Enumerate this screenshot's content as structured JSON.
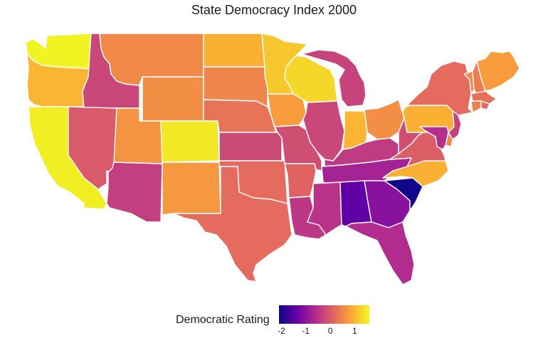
{
  "title": "State Democracy Index 2000",
  "legend": {
    "title": "Democratic Rating",
    "ticks": [
      {
        "value": -2,
        "label": "-2"
      },
      {
        "value": -1,
        "label": "-1"
      },
      {
        "value": 0,
        "label": "0"
      },
      {
        "value": 1,
        "label": "1"
      }
    ],
    "range": [
      -2.1,
      1.6
    ],
    "colors": [
      "#0d0887",
      "#6a00a8",
      "#b12a90",
      "#e16462",
      "#fca636",
      "#f0f921"
    ]
  },
  "chart_data": {
    "type": "choropleth",
    "title": "State Democracy Index 2000",
    "legend_title": "Democratic Rating",
    "values": {
      "WA": 1.55,
      "OR": 1.0,
      "CA": 1.5,
      "ID": -0.25,
      "NV": 0.0,
      "AZ": -0.35,
      "MT": 0.55,
      "WY": 0.6,
      "UT": 0.65,
      "CO": 1.45,
      "NM": 0.7,
      "ND": 0.95,
      "SD": 0.5,
      "NE": 0.3,
      "KS": -0.2,
      "OK": 0.2,
      "TX": 0.2,
      "MN": 1.15,
      "IA": 0.75,
      "MO": -0.15,
      "AR": 0.1,
      "LA": -0.45,
      "WI": 1.3,
      "IL": -0.25,
      "MI": -0.3,
      "IN": 1.0,
      "OH": 0.6,
      "KY": -0.4,
      "TN": -0.75,
      "MS": -0.5,
      "AL": -1.45,
      "GA": -1.05,
      "FL": -0.6,
      "SC": -2.05,
      "NC": 0.95,
      "VA": 0.05,
      "WV": -0.15,
      "PA": 0.95,
      "NY": 0.2,
      "VT": 0.55,
      "NH": 0.4,
      "ME": 0.75,
      "MA": 0.25,
      "CT": 0.45,
      "RI": 0.15,
      "NJ": -0.3,
      "DE": 0.5,
      "MD": -0.55
    }
  }
}
